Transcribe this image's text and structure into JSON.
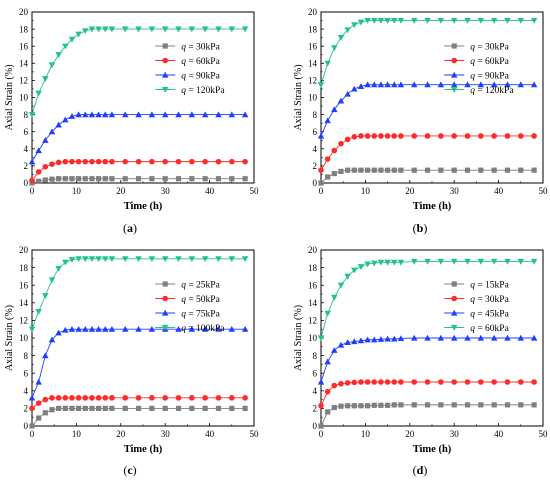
{
  "colors": {
    "series": [
      "#7f7f7f",
      "#ff2a2a",
      "#1f3fff",
      "#22c38a"
    ],
    "markers": [
      "square",
      "circle",
      "triangle-up",
      "triangle-down"
    ]
  },
  "chart_data": [
    {
      "type": "line",
      "panel_label": "(a)",
      "xlabel": "Time (h)",
      "ylabel": "Axial Strain (%)",
      "xlim": [
        0,
        50
      ],
      "ylim": [
        0,
        20
      ],
      "xticks": [
        0,
        10,
        20,
        30,
        40,
        50
      ],
      "yticks": [
        0,
        2,
        4,
        6,
        8,
        10,
        12,
        14,
        16,
        18,
        20
      ],
      "grid": false,
      "legend_position": "upper-right",
      "x": [
        0,
        1.5,
        3,
        4.5,
        6,
        7.5,
        9,
        10.5,
        12,
        13.5,
        15,
        16.5,
        18,
        21,
        24,
        27,
        30,
        33,
        36,
        39,
        42,
        45,
        48
      ],
      "series": [
        {
          "name": "q = 30kPa",
          "name_prefix": "q",
          "name_suffix": " = 30kPa",
          "values": [
            0,
            0.2,
            0.35,
            0.45,
            0.5,
            0.5,
            0.5,
            0.5,
            0.5,
            0.5,
            0.5,
            0.5,
            0.5,
            0.5,
            0.5,
            0.5,
            0.5,
            0.5,
            0.5,
            0.5,
            0.5,
            0.5,
            0.5
          ]
        },
        {
          "name": "q = 60kPa",
          "name_prefix": "q",
          "name_suffix": " = 60kPa",
          "values": [
            0.3,
            1.3,
            1.9,
            2.2,
            2.4,
            2.5,
            2.5,
            2.5,
            2.5,
            2.5,
            2.5,
            2.5,
            2.5,
            2.5,
            2.5,
            2.5,
            2.5,
            2.5,
            2.5,
            2.5,
            2.5,
            2.5,
            2.5
          ]
        },
        {
          "name": "q = 90kPa",
          "name_prefix": "q",
          "name_suffix": " = 90kPa",
          "values": [
            2.5,
            3.8,
            5.0,
            6.0,
            6.8,
            7.4,
            7.8,
            8.0,
            8.0,
            8.0,
            8.0,
            8.0,
            8.0,
            8.0,
            8.0,
            8.0,
            8.0,
            8.0,
            8.0,
            8.0,
            8.0,
            8.0,
            8.0
          ]
        },
        {
          "name": "q = 120kPa",
          "name_prefix": "q",
          "name_suffix": " = 120kPa",
          "values": [
            8.0,
            10.5,
            12.2,
            13.8,
            15.0,
            16.0,
            16.8,
            17.4,
            17.8,
            18.0,
            18.0,
            18.0,
            18.0,
            18.0,
            18.0,
            18.0,
            18.0,
            18.0,
            18.0,
            18.0,
            18.0,
            18.0,
            18.0
          ]
        }
      ]
    },
    {
      "type": "line",
      "panel_label": "(b)",
      "xlabel": "Time (h)",
      "ylabel": "Axial Strain (%)",
      "xlim": [
        0,
        50
      ],
      "ylim": [
        0,
        20
      ],
      "xticks": [
        0,
        10,
        20,
        30,
        40,
        50
      ],
      "yticks": [
        0,
        2,
        4,
        6,
        8,
        10,
        12,
        14,
        16,
        18,
        20
      ],
      "grid": false,
      "legend_position": "upper-right",
      "x": [
        0,
        1.5,
        3,
        4.5,
        6,
        7.5,
        9,
        10.5,
        12,
        13.5,
        15,
        16.5,
        18,
        21,
        24,
        27,
        30,
        33,
        36,
        39,
        42,
        45,
        48
      ],
      "series": [
        {
          "name": "q = 30kPa",
          "name_prefix": "q",
          "name_suffix": " = 30kPa",
          "values": [
            0,
            0.7,
            1.1,
            1.35,
            1.5,
            1.5,
            1.5,
            1.5,
            1.5,
            1.5,
            1.5,
            1.5,
            1.5,
            1.5,
            1.5,
            1.5,
            1.5,
            1.5,
            1.5,
            1.5,
            1.5,
            1.5,
            1.5
          ]
        },
        {
          "name": "q = 60kPa",
          "name_prefix": "q",
          "name_suffix": " = 60kPa",
          "values": [
            1.5,
            2.8,
            3.8,
            4.6,
            5.1,
            5.4,
            5.5,
            5.5,
            5.5,
            5.5,
            5.5,
            5.5,
            5.5,
            5.5,
            5.5,
            5.5,
            5.5,
            5.5,
            5.5,
            5.5,
            5.5,
            5.5,
            5.5
          ]
        },
        {
          "name": "q = 90kPa",
          "name_prefix": "q",
          "name_suffix": " = 90kPa",
          "values": [
            5.5,
            7.3,
            8.6,
            9.6,
            10.4,
            11.0,
            11.3,
            11.5,
            11.5,
            11.5,
            11.5,
            11.5,
            11.5,
            11.5,
            11.5,
            11.5,
            11.5,
            11.5,
            11.5,
            11.5,
            11.5,
            11.5,
            11.5
          ]
        },
        {
          "name": "q = 120kPa",
          "name_prefix": "q",
          "name_suffix": " = 120kPa",
          "values": [
            11.5,
            14.0,
            15.8,
            17.0,
            17.9,
            18.5,
            18.8,
            19.0,
            19.0,
            19.0,
            19.0,
            19.0,
            19.0,
            19.0,
            19.0,
            19.0,
            19.0,
            19.0,
            19.0,
            19.0,
            19.0,
            19.0,
            19.0
          ]
        }
      ]
    },
    {
      "type": "line",
      "panel_label": "(c)",
      "xlabel": "Time (h)",
      "ylabel": "Axial Strain (%)",
      "xlim": [
        0,
        50
      ],
      "ylim": [
        0,
        20
      ],
      "xticks": [
        0,
        10,
        20,
        30,
        40,
        50
      ],
      "yticks": [
        0,
        2,
        4,
        6,
        8,
        10,
        12,
        14,
        16,
        18,
        20
      ],
      "grid": false,
      "legend_position": "upper-right",
      "x": [
        0,
        1.5,
        3,
        4.5,
        6,
        7.5,
        9,
        10.5,
        12,
        13.5,
        15,
        16.5,
        18,
        21,
        24,
        27,
        30,
        33,
        36,
        39,
        42,
        45,
        48
      ],
      "series": [
        {
          "name": "q = 25kPa",
          "name_prefix": "q",
          "name_suffix": " = 25kPa",
          "values": [
            0,
            0.9,
            1.5,
            1.85,
            2.0,
            2.0,
            2.0,
            2.0,
            2.0,
            2.0,
            2.0,
            2.0,
            2.0,
            2.0,
            2.0,
            2.0,
            2.0,
            2.0,
            2.0,
            2.0,
            2.0,
            2.0,
            2.0
          ]
        },
        {
          "name": "q = 50kPa",
          "name_prefix": "q",
          "name_suffix": " = 50kPa",
          "values": [
            2.0,
            2.6,
            3.0,
            3.2,
            3.2,
            3.2,
            3.2,
            3.2,
            3.2,
            3.2,
            3.2,
            3.2,
            3.2,
            3.2,
            3.2,
            3.2,
            3.2,
            3.2,
            3.2,
            3.2,
            3.2,
            3.2,
            3.2
          ]
        },
        {
          "name": "q = 75kPa",
          "name_prefix": "q",
          "name_suffix": " = 75kPa",
          "values": [
            3.2,
            5.0,
            8.0,
            9.8,
            10.6,
            10.9,
            11.0,
            11.0,
            11.0,
            11.0,
            11.0,
            11.0,
            11.0,
            11.0,
            11.0,
            11.0,
            11.0,
            11.0,
            11.0,
            11.0,
            11.0,
            11.0,
            11.0
          ]
        },
        {
          "name": "q = 100kPa",
          "name_prefix": "q",
          "name_suffix": " = 100kPa",
          "values": [
            11.0,
            13.0,
            14.8,
            16.6,
            17.9,
            18.6,
            18.9,
            19.0,
            19.0,
            19.0,
            19.0,
            19.0,
            19.0,
            19.0,
            19.0,
            19.0,
            19.0,
            19.0,
            19.0,
            19.0,
            19.0,
            19.0,
            19.0
          ]
        }
      ]
    },
    {
      "type": "line",
      "panel_label": "(d)",
      "xlabel": "Time (h)",
      "ylabel": "Axial Strain (%)",
      "xlim": [
        0,
        50
      ],
      "ylim": [
        0,
        20
      ],
      "xticks": [
        0,
        10,
        20,
        30,
        40,
        50
      ],
      "yticks": [
        0,
        2,
        4,
        6,
        8,
        10,
        12,
        14,
        16,
        18,
        20
      ],
      "grid": false,
      "legend_position": "upper-right",
      "x": [
        0,
        1.5,
        3,
        4.5,
        6,
        7.5,
        9,
        10.5,
        12,
        13.5,
        15,
        16.5,
        18,
        21,
        24,
        27,
        30,
        33,
        36,
        39,
        42,
        45,
        48
      ],
      "series": [
        {
          "name": "q = 15kPa",
          "name_prefix": "q",
          "name_suffix": " = 15kPa",
          "values": [
            0,
            1.6,
            2.1,
            2.25,
            2.3,
            2.3,
            2.3,
            2.3,
            2.35,
            2.35,
            2.35,
            2.4,
            2.4,
            2.4,
            2.4,
            2.4,
            2.4,
            2.4,
            2.4,
            2.4,
            2.4,
            2.4,
            2.4
          ]
        },
        {
          "name": "q = 30kPa",
          "name_prefix": "q",
          "name_suffix": " = 30kPa",
          "values": [
            2.3,
            3.9,
            4.6,
            4.8,
            4.9,
            4.95,
            5.0,
            5.0,
            5.0,
            5.0,
            5.0,
            5.0,
            5.0,
            5.0,
            5.0,
            5.0,
            5.0,
            5.0,
            5.0,
            5.0,
            5.0,
            5.0,
            5.0
          ]
        },
        {
          "name": "q = 45kPa",
          "name_prefix": "q",
          "name_suffix": " = 45kPa",
          "values": [
            5.0,
            7.3,
            8.6,
            9.2,
            9.5,
            9.6,
            9.7,
            9.8,
            9.8,
            9.85,
            9.9,
            9.9,
            9.95,
            10.0,
            10.0,
            10.0,
            10.0,
            10.0,
            10.0,
            10.0,
            10.0,
            10.0,
            10.0
          ]
        },
        {
          "name": "q = 60kPa",
          "name_prefix": "q",
          "name_suffix": " = 60kPa",
          "values": [
            10.0,
            12.8,
            14.6,
            16.0,
            17.0,
            17.7,
            18.1,
            18.4,
            18.5,
            18.6,
            18.6,
            18.6,
            18.6,
            18.7,
            18.7,
            18.7,
            18.7,
            18.7,
            18.7,
            18.7,
            18.7,
            18.7,
            18.7
          ]
        }
      ]
    }
  ]
}
